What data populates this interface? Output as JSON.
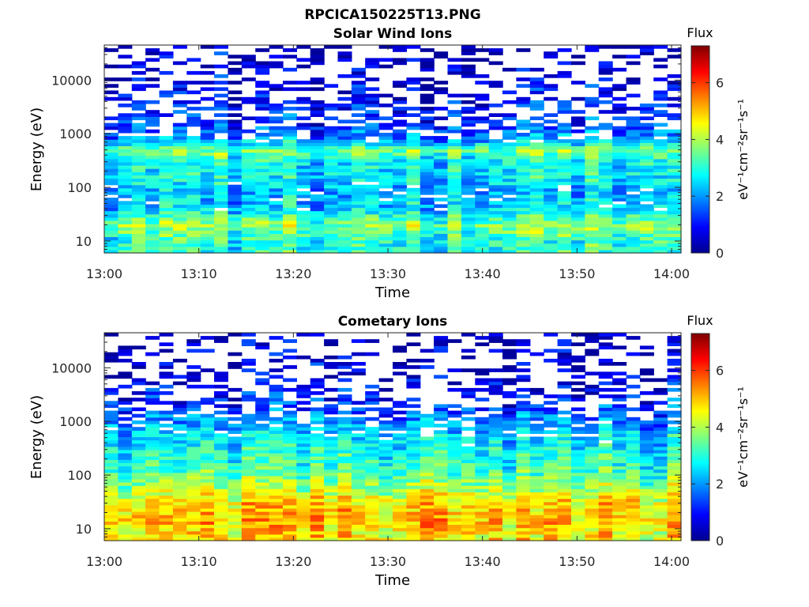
{
  "figure": {
    "title": "RPCICA150225T13.PNG"
  },
  "chart_data": [
    {
      "type": "heatmap",
      "title": "Solar Wind Ions",
      "xlabel": "Time",
      "ylabel": "Energy (eV)",
      "x_ticks": [
        "13:00",
        "13:10",
        "13:20",
        "13:30",
        "13:40",
        "13:50",
        "14:00"
      ],
      "x_range": [
        "13:00",
        "14:01"
      ],
      "y_scale": "log",
      "y_ticks": [
        "10",
        "100",
        "1000",
        "10000"
      ],
      "y_range": [
        6,
        45000
      ],
      "colorbar": {
        "label": "Flux",
        "unit": "eV⁻¹cm⁻²sr⁻¹s⁻¹",
        "ticks": [
          "0",
          "2",
          "4",
          "6"
        ],
        "range": [
          0,
          7.3
        ],
        "colormap": "jet"
      },
      "grid": false,
      "profile": [
        {
          "energy": 10,
          "flux": 3.0
        },
        {
          "energy": 20,
          "flux": 3.8
        },
        {
          "energy": 40,
          "flux": 2.5
        },
        {
          "energy": 80,
          "flux": 2.2
        },
        {
          "energy": 150,
          "flux": 2.6
        },
        {
          "energy": 300,
          "flux": 2.8
        },
        {
          "energy": 500,
          "flux": 3.6
        },
        {
          "energy": 800,
          "flux": 2.0
        },
        {
          "energy": 2000,
          "flux": 1.2
        },
        {
          "energy": 10000,
          "flux": 0.6
        },
        {
          "energy": 40000,
          "flux": 0.5
        }
      ]
    },
    {
      "type": "heatmap",
      "title": "Cometary Ions",
      "xlabel": "Time",
      "ylabel": "Energy (eV)",
      "x_ticks": [
        "13:00",
        "13:10",
        "13:20",
        "13:30",
        "13:40",
        "13:50",
        "14:00"
      ],
      "x_range": [
        "13:00",
        "14:01"
      ],
      "y_scale": "log",
      "y_ticks": [
        "10",
        "100",
        "1000",
        "10000"
      ],
      "y_range": [
        6,
        45000
      ],
      "colorbar": {
        "label": "Flux",
        "unit": "eV⁻¹cm⁻²sr⁻¹s⁻¹",
        "ticks": [
          "0",
          "2",
          "4",
          "6"
        ],
        "range": [
          0,
          7.3
        ],
        "colormap": "jet"
      },
      "grid": false,
      "profile": [
        {
          "energy": 8,
          "flux": 4.6
        },
        {
          "energy": 15,
          "flux": 5.0
        },
        {
          "energy": 30,
          "flux": 4.7
        },
        {
          "energy": 60,
          "flux": 3.8
        },
        {
          "energy": 150,
          "flux": 3.0
        },
        {
          "energy": 400,
          "flux": 2.6
        },
        {
          "energy": 900,
          "flux": 2.0
        },
        {
          "energy": 2000,
          "flux": 1.2
        },
        {
          "energy": 6000,
          "flux": 0.6
        },
        {
          "energy": 40000,
          "flux": 0.4
        }
      ]
    }
  ]
}
